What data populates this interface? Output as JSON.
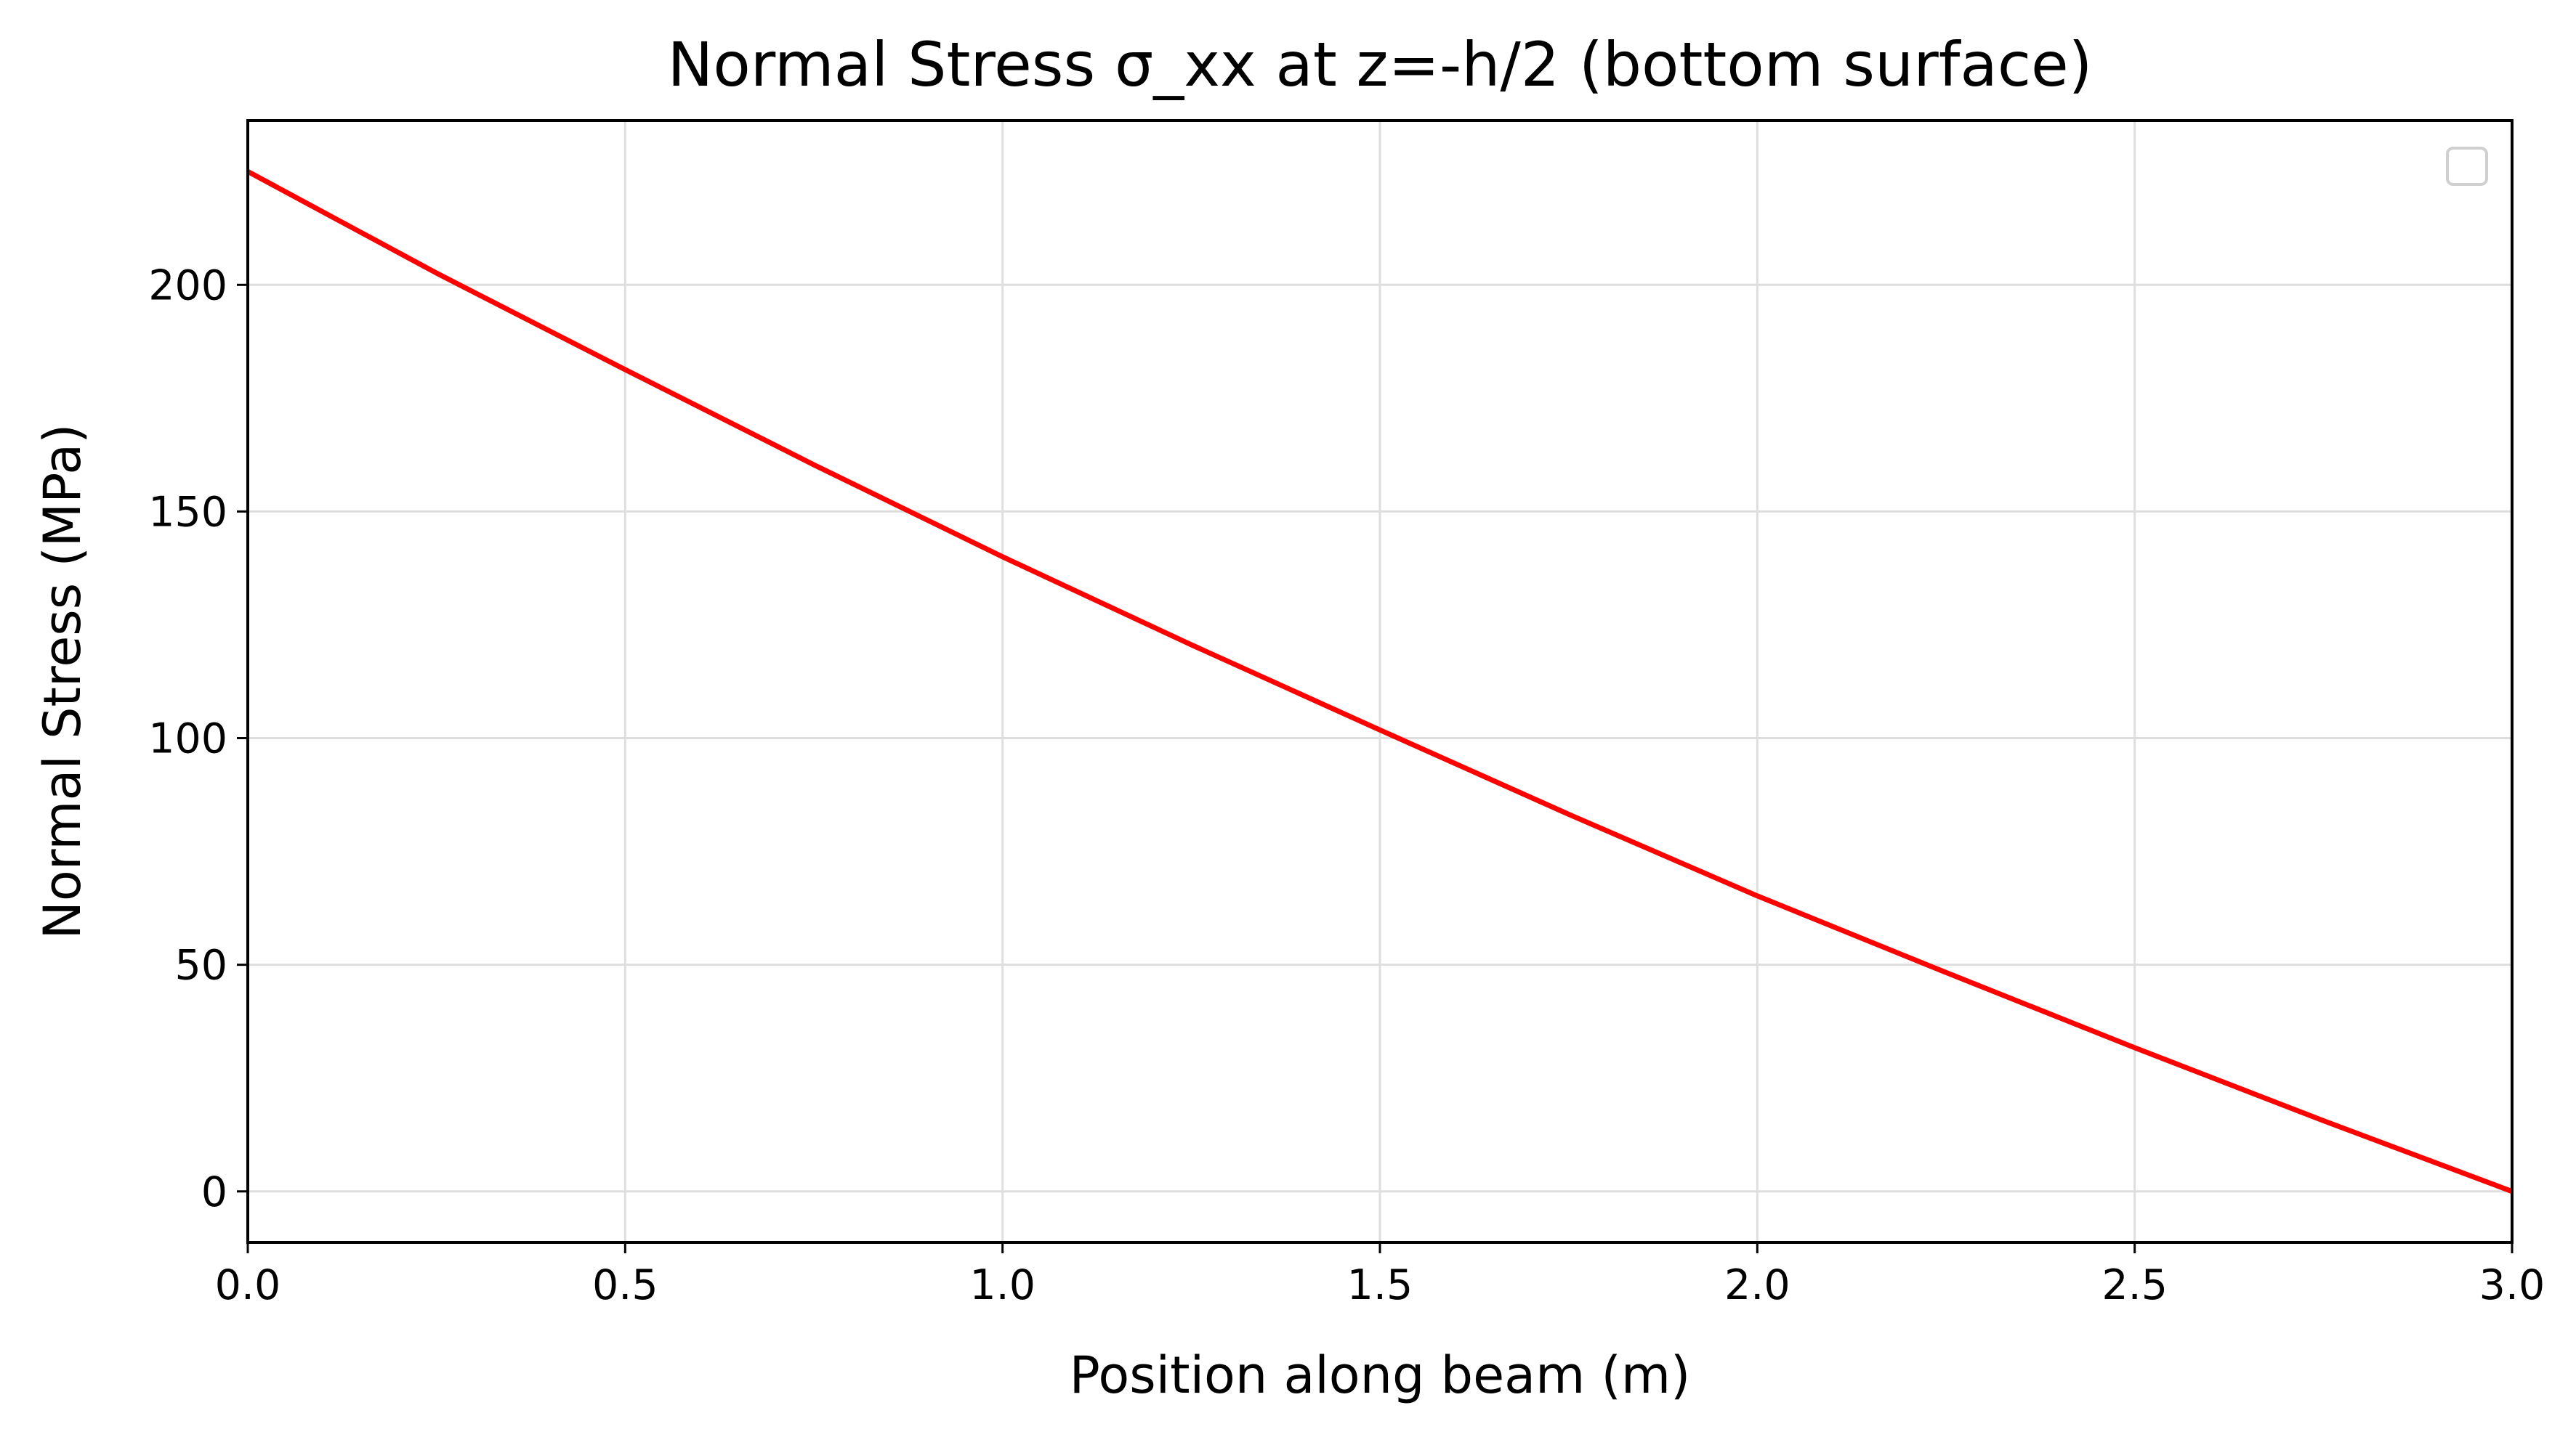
{
  "chart_data": {
    "type": "line",
    "title": "Normal Stress σ_xx at z=-h/2 (bottom surface)",
    "xlabel": "Position along beam (m)",
    "ylabel": "Normal Stress (MPa)",
    "xlim": [
      0.0,
      3.0
    ],
    "ylim": [
      -11.25,
      236.25
    ],
    "xticks": [
      0.0,
      0.5,
      1.0,
      1.5,
      2.0,
      2.5,
      3.0
    ],
    "xtick_labels": [
      "0.0",
      "0.5",
      "1.0",
      "1.5",
      "2.0",
      "2.5",
      "3.0"
    ],
    "yticks": [
      0,
      50,
      100,
      150,
      200
    ],
    "ytick_labels": [
      "0",
      "50",
      "100",
      "150",
      "200"
    ],
    "grid": true,
    "legend": {
      "placement": "top-right",
      "entries": []
    },
    "series": [
      {
        "color": "#ff0000",
        "x": [
          0.0,
          0.25,
          0.5,
          0.75,
          1.0,
          1.25,
          1.5,
          1.75,
          2.0,
          2.25,
          2.5,
          2.75,
          3.0
        ],
        "y": [
          225.0,
          202.6,
          181.3,
          160.3,
          140.0,
          120.6,
          101.8,
          83.2,
          65.2,
          48.3,
          31.7,
          15.6,
          0.0
        ]
      }
    ]
  }
}
